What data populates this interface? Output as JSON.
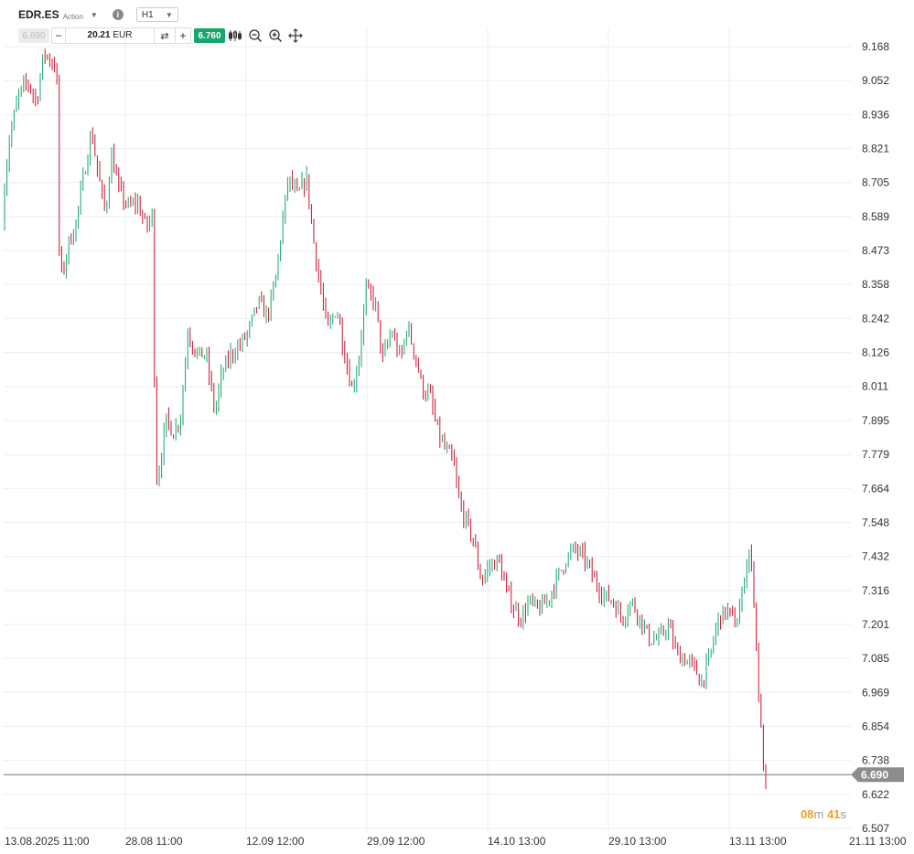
{
  "header": {
    "symbol": "EDR.ES",
    "symbol_type": "Action",
    "timeframe": "H1"
  },
  "trade_bar": {
    "sell_price": "6.690",
    "quantity": "20.21",
    "currency": "EUR",
    "buy_price": "6.760"
  },
  "icons": {
    "dropdown": "chevron-down-icon",
    "info": "info-icon",
    "swap": "swap-icon",
    "chart_type": "candlestick-icon",
    "zoom_out": "zoom-out-icon",
    "zoom_in": "zoom-in-icon",
    "move": "crosshair-move-icon"
  },
  "countdown": {
    "minutes": "08",
    "seconds": "41",
    "m": "m",
    "s": "s"
  },
  "colors": {
    "up": "#16a56b",
    "down": "#c8102e",
    "price_line": "#777777",
    "price_label_bg": "#8c8c8c",
    "buy": "#16a56b",
    "grid": "#eeeeee"
  },
  "chart_data": {
    "type": "candlestick",
    "title": "",
    "xlabel": "",
    "ylabel": "",
    "ylim": [
      6.507,
      9.168
    ],
    "y_ticks": [
      "9.168",
      "9.052",
      "8.936",
      "8.821",
      "8.705",
      "8.589",
      "8.473",
      "8.358",
      "8.242",
      "8.126",
      "8.011",
      "7.895",
      "7.779",
      "7.664",
      "7.548",
      "7.432",
      "7.316",
      "7.201",
      "7.085",
      "6.969",
      "6.854",
      "6.738",
      "6.622",
      "6.507"
    ],
    "x_ticks": [
      "13.08.2025 11:00",
      "28.08 11:00",
      "12.09 12:00",
      "29.09 12:00",
      "14.10 13:00",
      "29.10 13:00",
      "13.11 13:00",
      "21.11 13:00"
    ],
    "current_price": 6.69,
    "current_price_label": "6.690",
    "grid": true,
    "close_path": [
      [
        0,
        8.55
      ],
      [
        10,
        8.85
      ],
      [
        20,
        9.0
      ],
      [
        30,
        9.05
      ],
      [
        40,
        8.98
      ],
      [
        48,
        9.15
      ],
      [
        55,
        9.12
      ],
      [
        62,
        9.1
      ],
      [
        64,
        8.5
      ],
      [
        68,
        8.38
      ],
      [
        75,
        8.5
      ],
      [
        82,
        8.55
      ],
      [
        90,
        8.7
      ],
      [
        100,
        8.88
      ],
      [
        108,
        8.72
      ],
      [
        115,
        8.6
      ],
      [
        122,
        8.8
      ],
      [
        130,
        8.68
      ],
      [
        140,
        8.62
      ],
      [
        150,
        8.64
      ],
      [
        160,
        8.55
      ],
      [
        167,
        8.6
      ],
      [
        170,
        7.68
      ],
      [
        175,
        7.75
      ],
      [
        182,
        7.9
      ],
      [
        190,
        7.85
      ],
      [
        198,
        7.92
      ],
      [
        205,
        8.2
      ],
      [
        215,
        8.12
      ],
      [
        225,
        8.12
      ],
      [
        235,
        7.92
      ],
      [
        242,
        8.05
      ],
      [
        252,
        8.12
      ],
      [
        262,
        8.15
      ],
      [
        272,
        8.2
      ],
      [
        282,
        8.3
      ],
      [
        292,
        8.25
      ],
      [
        300,
        8.35
      ],
      [
        308,
        8.55
      ],
      [
        315,
        8.72
      ],
      [
        325,
        8.66
      ],
      [
        335,
        8.72
      ],
      [
        343,
        8.5
      ],
      [
        350,
        8.35
      ],
      [
        358,
        8.2
      ],
      [
        368,
        8.28
      ],
      [
        378,
        8.1
      ],
      [
        385,
        8.0
      ],
      [
        392,
        8.1
      ],
      [
        400,
        8.34
      ],
      [
        410,
        8.3
      ],
      [
        418,
        8.1
      ],
      [
        428,
        8.2
      ],
      [
        438,
        8.1
      ],
      [
        445,
        8.22
      ],
      [
        455,
        8.1
      ],
      [
        462,
        8.0
      ],
      [
        470,
        7.98
      ],
      [
        478,
        7.86
      ],
      [
        486,
        7.8
      ],
      [
        495,
        7.76
      ],
      [
        503,
        7.6
      ],
      [
        510,
        7.55
      ],
      [
        518,
        7.48
      ],
      [
        526,
        7.35
      ],
      [
        535,
        7.4
      ],
      [
        545,
        7.42
      ],
      [
        553,
        7.32
      ],
      [
        561,
        7.26
      ],
      [
        570,
        7.22
      ],
      [
        578,
        7.28
      ],
      [
        588,
        7.25
      ],
      [
        598,
        7.28
      ],
      [
        608,
        7.35
      ],
      [
        618,
        7.42
      ],
      [
        628,
        7.46
      ],
      [
        640,
        7.42
      ],
      [
        650,
        7.35
      ],
      [
        660,
        7.3
      ],
      [
        670,
        7.28
      ],
      [
        680,
        7.22
      ],
      [
        690,
        7.28
      ],
      [
        700,
        7.22
      ],
      [
        710,
        7.15
      ],
      [
        720,
        7.15
      ],
      [
        730,
        7.2
      ],
      [
        740,
        7.1
      ],
      [
        750,
        7.08
      ],
      [
        760,
        7.05
      ],
      [
        766,
        7.0
      ],
      [
        775,
        7.08
      ],
      [
        785,
        7.22
      ],
      [
        795,
        7.25
      ],
      [
        805,
        7.2
      ],
      [
        812,
        7.32
      ],
      [
        818,
        7.46
      ],
      [
        823,
        7.36
      ],
      [
        827,
        7.1
      ],
      [
        830,
        6.92
      ],
      [
        833,
        6.78
      ],
      [
        836,
        6.65
      ],
      [
        838,
        6.63
      ]
    ]
  }
}
